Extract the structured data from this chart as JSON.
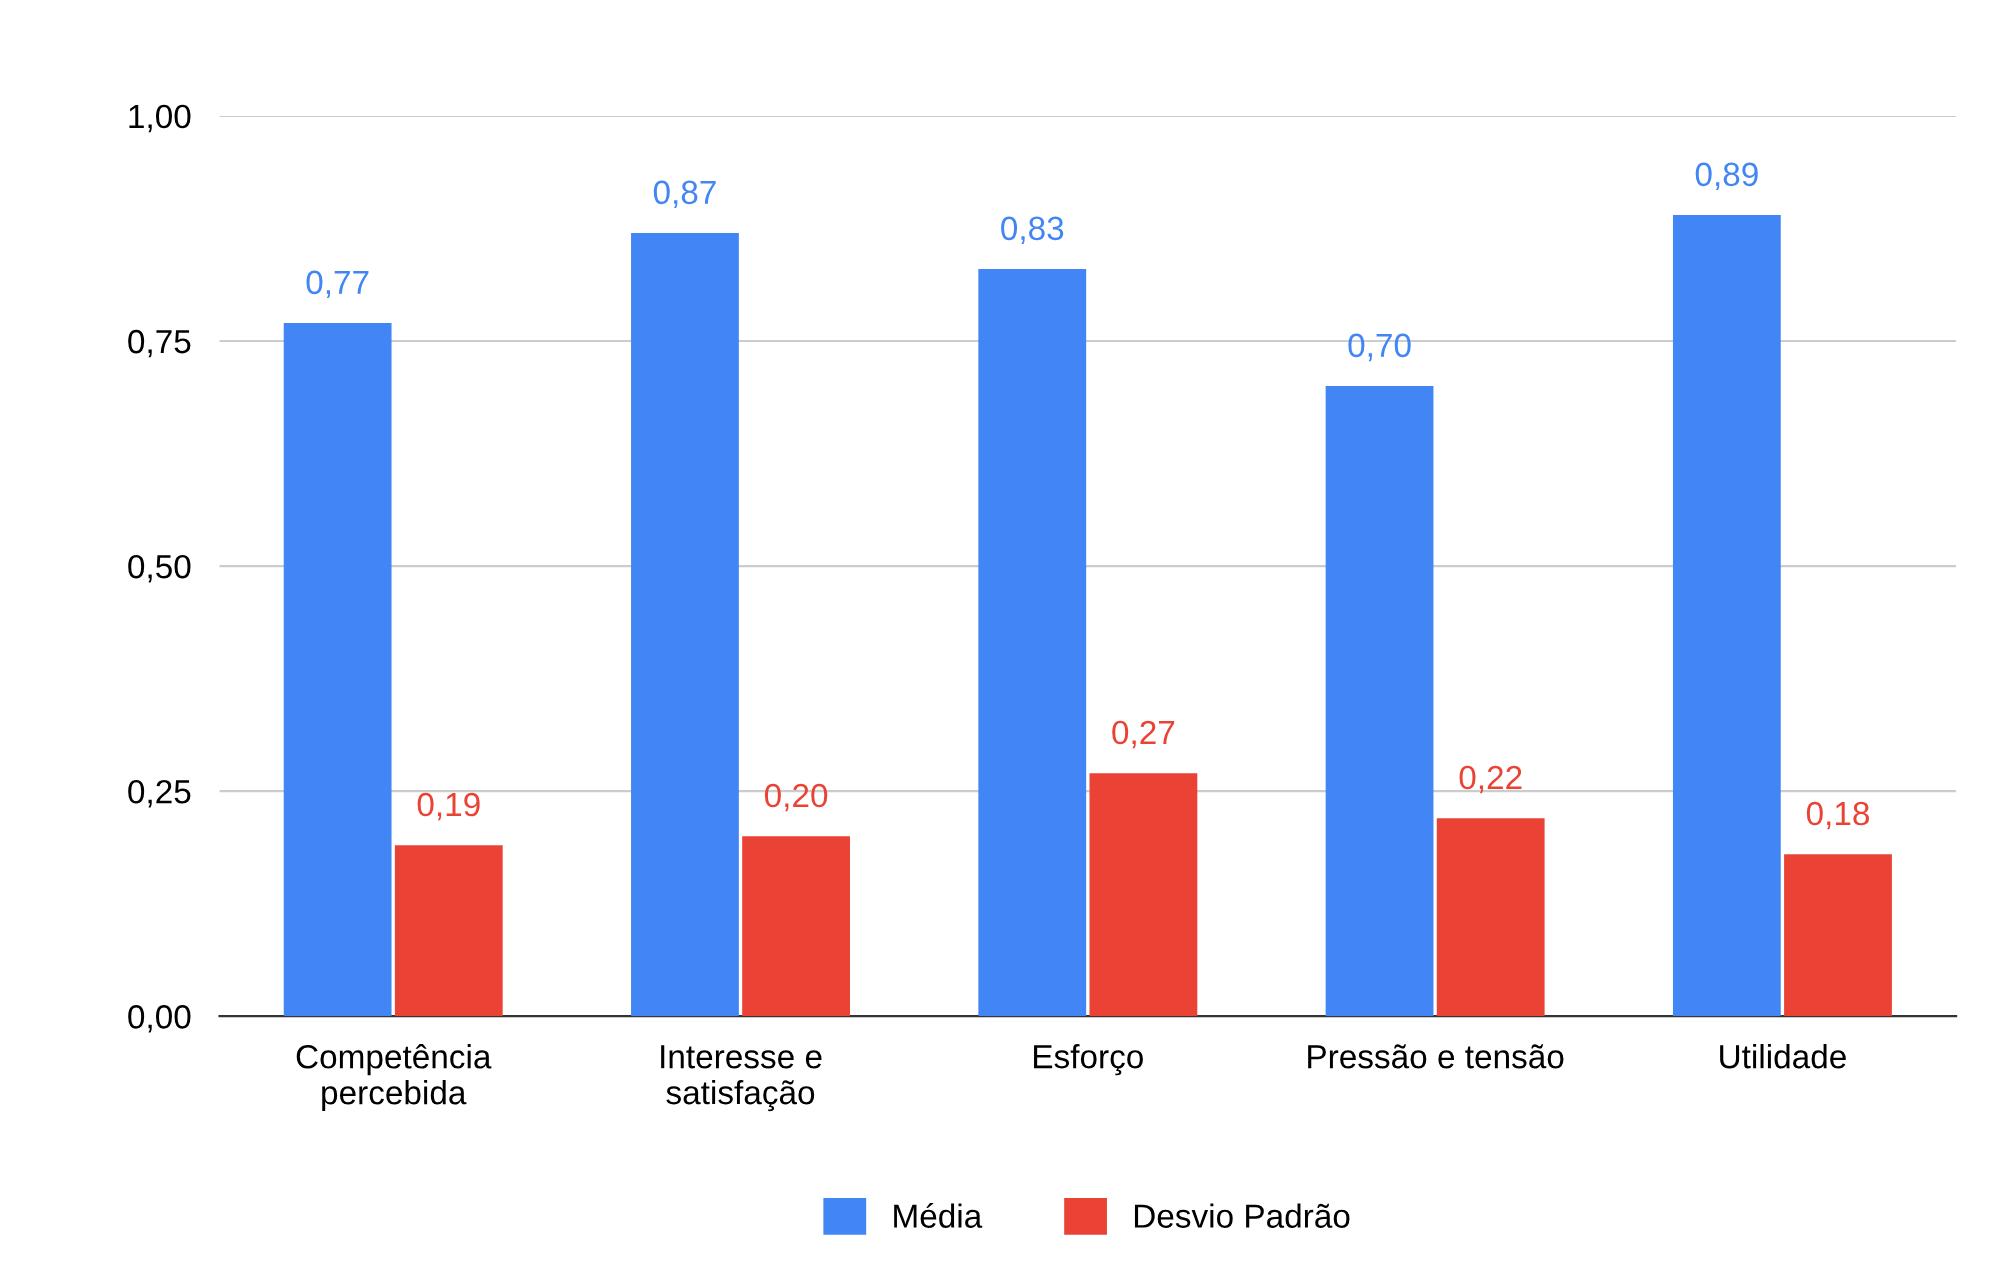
{
  "chart_data": {
    "type": "bar",
    "categories": [
      "Competência\npercebida",
      "Interesse e\nsatisfação",
      "Esforço",
      "Pressão e tensão",
      "Utilidade"
    ],
    "series": [
      {
        "name": "Média",
        "color": "#4285f4",
        "values": [
          0.77,
          0.87,
          0.83,
          0.7,
          0.89
        ],
        "value_labels": [
          "0,77",
          "0,87",
          "0,83",
          "0,70",
          "0,89"
        ]
      },
      {
        "name": "Desvio Padrão",
        "color": "#ea4335",
        "values": [
          0.19,
          0.2,
          0.27,
          0.22,
          0.18
        ],
        "value_labels": [
          "0,19",
          "0,20",
          "0,27",
          "0,22",
          "0,18"
        ]
      }
    ],
    "ylim": [
      0,
      1
    ],
    "yticks": [
      {
        "value": 0,
        "label": "0,00"
      },
      {
        "value": 0.25,
        "label": "0,25"
      },
      {
        "value": 0.5,
        "label": "0,50"
      },
      {
        "value": 0.75,
        "label": "0,75"
      },
      {
        "value": 1,
        "label": "1,00"
      }
    ],
    "grid": "y",
    "legend": "bottom"
  }
}
